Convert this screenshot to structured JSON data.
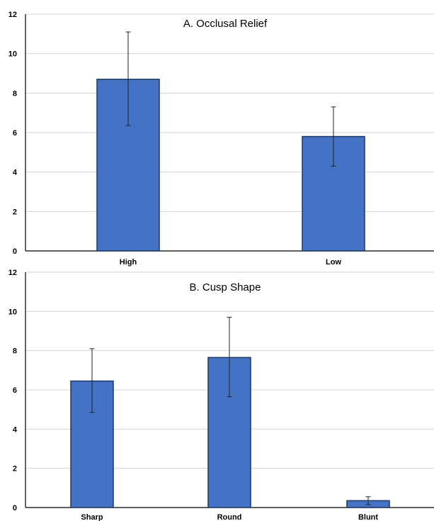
{
  "chart_data": [
    {
      "type": "bar",
      "title": "A. Occlusal Relief",
      "categories": [
        "High",
        "Low"
      ],
      "values": [
        8.7,
        5.8
      ],
      "error_low": [
        6.35,
        4.3
      ],
      "error_high": [
        11.1,
        7.3
      ],
      "ylim": [
        0,
        12
      ],
      "yticks": [
        "0",
        "2",
        "4",
        "6",
        "8",
        "10",
        "12"
      ],
      "xlabel": "",
      "ylabel": "",
      "grid": true,
      "bar_color": "#4472c4",
      "bar_edge_color": "#1f3864"
    },
    {
      "type": "bar",
      "title": "B. Cusp Shape",
      "categories": [
        "Sharp",
        "Round",
        "Blunt"
      ],
      "values": [
        6.45,
        7.65,
        0.35
      ],
      "error_low": [
        4.85,
        5.65,
        0.15
      ],
      "error_high": [
        8.1,
        9.7,
        0.55
      ],
      "ylim": [
        0,
        12
      ],
      "yticks": [
        "0",
        "2",
        "4",
        "6",
        "8",
        "10",
        "12"
      ],
      "xlabel": "",
      "ylabel": "",
      "grid": true,
      "bar_color": "#4472c4",
      "bar_edge_color": "#1f3864"
    }
  ]
}
